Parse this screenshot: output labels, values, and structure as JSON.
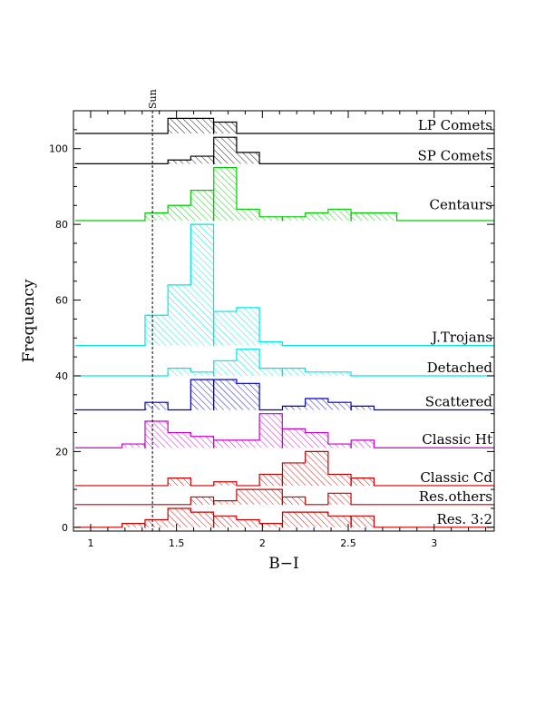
{
  "chart_data": {
    "type": "histogram",
    "xlabel": "B−I",
    "ylabel": "Frequency",
    "xlim": [
      0.9,
      3.35
    ],
    "ylim": [
      -1,
      110
    ],
    "x_ticks": [
      "1",
      "1.5",
      "2",
      "2.5",
      "3"
    ],
    "x_tick_values": [
      1,
      1.5,
      2,
      2.5,
      3
    ],
    "y_ticks": [
      "0",
      "20",
      "40",
      "60",
      "80",
      "100"
    ],
    "y_tick_values": [
      0,
      20,
      40,
      60,
      80,
      100
    ],
    "reference_line": {
      "label": "Sun",
      "x": 1.36
    },
    "bin_width": 0.133,
    "series": [
      {
        "name": "LP Comets",
        "color": "#000000",
        "baseline": 104,
        "x_min": 0.91,
        "x_max": 3.35,
        "bins": [
          [
            1.45,
            4
          ],
          [
            1.583,
            4
          ],
          [
            1.717,
            3
          ]
        ]
      },
      {
        "name": "SP Comets",
        "color": "#000000",
        "baseline": 96,
        "x_min": 0.91,
        "x_max": 3.35,
        "bins": [
          [
            1.45,
            1
          ],
          [
            1.583,
            2
          ],
          [
            1.717,
            7
          ],
          [
            1.85,
            3
          ]
        ]
      },
      {
        "name": "Centaurs",
        "color": "#00cc00",
        "baseline": 81,
        "x_min": 0.91,
        "x_max": 3.35,
        "bins": [
          [
            1.317,
            2
          ],
          [
            1.45,
            4
          ],
          [
            1.583,
            8
          ],
          [
            1.717,
            14
          ],
          [
            1.85,
            3
          ],
          [
            1.983,
            1
          ],
          [
            2.117,
            1
          ],
          [
            2.25,
            2
          ],
          [
            2.383,
            3
          ],
          [
            2.517,
            2
          ],
          [
            2.65,
            2
          ]
        ]
      },
      {
        "name": "J.Trojans",
        "color": "#00e5e5",
        "baseline": 48,
        "x_min": 0.91,
        "x_max": 3.35,
        "bins": [
          [
            1.317,
            8
          ],
          [
            1.45,
            16
          ],
          [
            1.583,
            32
          ],
          [
            1.717,
            9
          ],
          [
            1.85,
            10
          ],
          [
            1.983,
            1
          ]
        ]
      },
      {
        "name": "Detached",
        "color": "#00e5e5",
        "baseline": 40,
        "x_min": 0.91,
        "x_max": 3.35,
        "bins": [
          [
            1.45,
            2
          ],
          [
            1.583,
            1
          ],
          [
            1.717,
            4
          ],
          [
            1.85,
            7
          ],
          [
            1.983,
            2
          ],
          [
            2.117,
            2
          ],
          [
            2.25,
            1
          ],
          [
            2.383,
            1
          ]
        ]
      },
      {
        "name": "Scattered",
        "color": "#0000cc",
        "baseline": 31,
        "x_min": 0.91,
        "x_max": 3.35,
        "bins": [
          [
            1.317,
            2
          ],
          [
            1.583,
            8
          ],
          [
            1.717,
            8
          ],
          [
            1.85,
            7
          ],
          [
            2.117,
            1
          ],
          [
            2.25,
            3
          ],
          [
            2.383,
            2
          ],
          [
            2.517,
            1
          ]
        ]
      },
      {
        "name": "Classic Ht",
        "color": "#cc00cc",
        "baseline": 21,
        "x_min": 0.91,
        "x_max": 3.35,
        "bins": [
          [
            1.183,
            1
          ],
          [
            1.317,
            7
          ],
          [
            1.45,
            4
          ],
          [
            1.583,
            3
          ],
          [
            1.717,
            2
          ],
          [
            1.85,
            2
          ],
          [
            1.983,
            9
          ],
          [
            2.117,
            5
          ],
          [
            2.25,
            4
          ],
          [
            2.383,
            1
          ],
          [
            2.517,
            2
          ]
        ]
      },
      {
        "name": "Classic Cd",
        "color": "#cc0000",
        "baseline": 11,
        "x_min": 0.91,
        "x_max": 3.35,
        "bins": [
          [
            1.45,
            2
          ],
          [
            1.583,
            0
          ],
          [
            1.717,
            1
          ],
          [
            1.983,
            3
          ],
          [
            2.117,
            6
          ],
          [
            2.25,
            9
          ],
          [
            2.383,
            3
          ],
          [
            2.517,
            2
          ]
        ]
      },
      {
        "name": "Res.others",
        "color": "#cc0000",
        "baseline": 6,
        "x_min": 0.91,
        "x_max": 3.35,
        "bins": [
          [
            1.583,
            2
          ],
          [
            1.717,
            1
          ],
          [
            1.85,
            4
          ],
          [
            1.983,
            4
          ],
          [
            2.117,
            2
          ],
          [
            2.383,
            3
          ]
        ]
      },
      {
        "name": "Res. 3:2",
        "color": "#cc0000",
        "baseline": 0,
        "x_min": 0.91,
        "x_max": 3.35,
        "bins": [
          [
            1.183,
            1
          ],
          [
            1.317,
            2
          ],
          [
            1.45,
            5
          ],
          [
            1.583,
            4
          ],
          [
            1.717,
            3
          ],
          [
            1.85,
            2
          ],
          [
            1.983,
            1
          ],
          [
            2.117,
            4
          ],
          [
            2.25,
            4
          ],
          [
            2.383,
            3
          ],
          [
            2.517,
            3
          ]
        ]
      }
    ]
  }
}
